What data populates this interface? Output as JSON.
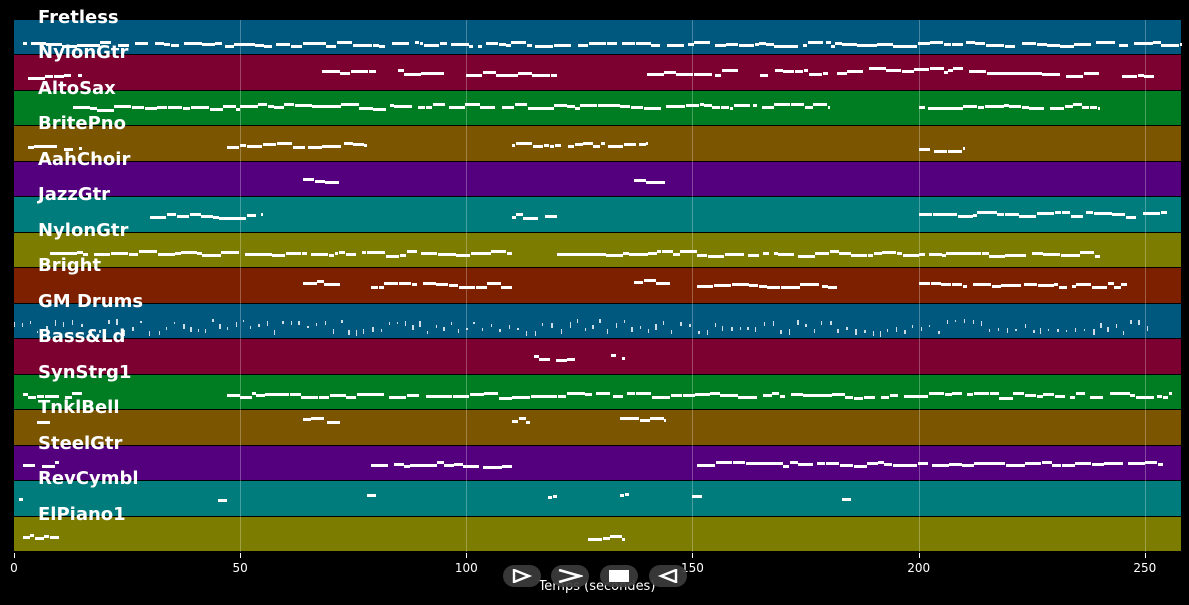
{
  "chart_data": {
    "type": "piano-roll",
    "xlabel": "Temps (secondes)",
    "xlim": [
      0,
      258
    ],
    "xticks": [
      0,
      50,
      100,
      150,
      200,
      250
    ],
    "grid": true,
    "tracks": [
      {
        "name": "Fretless",
        "color": "#00587e",
        "segments": [
          [
            2,
            258,
            0.65
          ]
        ]
      },
      {
        "name": "NylonGtr",
        "color": "#7c0030",
        "segments": [
          [
            3,
            15,
            0.55
          ],
          [
            68,
            80,
            0.45
          ],
          [
            85,
            95,
            0.45
          ],
          [
            100,
            120,
            0.5
          ],
          [
            140,
            160,
            0.45
          ],
          [
            165,
            180,
            0.45
          ],
          [
            182,
            215,
            0.4
          ],
          [
            215,
            240,
            0.5
          ],
          [
            245,
            252,
            0.5
          ]
        ]
      },
      {
        "name": "AltoSax",
        "color": "#007d22",
        "segments": [
          [
            13,
            50,
            0.45
          ],
          [
            50,
            180,
            0.4
          ],
          [
            200,
            220,
            0.45
          ],
          [
            220,
            240,
            0.4
          ]
        ]
      },
      {
        "name": "BritePno",
        "color": "#7c5500",
        "segments": [
          [
            3,
            15,
            0.55
          ],
          [
            47,
            78,
            0.5
          ],
          [
            110,
            140,
            0.5
          ],
          [
            200,
            210,
            0.6
          ]
        ]
      },
      {
        "name": "AahChoir",
        "color": "#54007e",
        "segments": [
          [
            64,
            72,
            0.5
          ],
          [
            137,
            144,
            0.5
          ]
        ]
      },
      {
        "name": "JazzGtr",
        "color": "#007c7c",
        "segments": [
          [
            30,
            55,
            0.5
          ],
          [
            110,
            120,
            0.5
          ],
          [
            200,
            255,
            0.45
          ]
        ]
      },
      {
        "name": "NylonGtr",
        "color": "#7c7c00",
        "segments": [
          [
            8,
            110,
            0.55
          ],
          [
            120,
            240,
            0.55
          ]
        ]
      },
      {
        "name": "Bright",
        "color": "#7d2000",
        "segments": [
          [
            64,
            72,
            0.35
          ],
          [
            79,
            110,
            0.45
          ],
          [
            137,
            145,
            0.35
          ],
          [
            151,
            182,
            0.45
          ],
          [
            200,
            246,
            0.45
          ]
        ]
      },
      {
        "name": "GM Drums",
        "color": "#00587e",
        "segments": [
          [
            0,
            252,
            0.6
          ]
        ]
      },
      {
        "name": "Bass&Ld",
        "color": "#7c0030",
        "segments": [
          [
            115,
            124,
            0.5
          ],
          [
            132,
            135,
            0.45
          ]
        ]
      },
      {
        "name": "SynStrg1",
        "color": "#007d22",
        "segments": [
          [
            2,
            15,
            0.55
          ],
          [
            47,
            256,
            0.55
          ]
        ]
      },
      {
        "name": "TnklBell",
        "color": "#7c5500",
        "segments": [
          [
            5,
            8,
            0.35
          ],
          [
            64,
            72,
            0.25
          ],
          [
            110,
            114,
            0.25
          ],
          [
            134,
            144,
            0.25
          ]
        ]
      },
      {
        "name": "SteelGtr",
        "color": "#54007e",
        "segments": [
          [
            2,
            10,
            0.5
          ],
          [
            79,
            110,
            0.5
          ],
          [
            151,
            254,
            0.5
          ]
        ]
      },
      {
        "name": "RevCymbl",
        "color": "#007c7c",
        "segments": [
          [
            1,
            2,
            0.5
          ],
          [
            45,
            47,
            0.5
          ],
          [
            78,
            80,
            0.4
          ],
          [
            118,
            120,
            0.4
          ],
          [
            134,
            136,
            0.4
          ],
          [
            150,
            152,
            0.4
          ],
          [
            183,
            185,
            0.4
          ]
        ]
      },
      {
        "name": "ElPiano1",
        "color": "#7c7c00",
        "segments": [
          [
            2,
            10,
            0.55
          ],
          [
            127,
            135,
            0.55
          ]
        ]
      }
    ]
  },
  "controls": [
    {
      "name": "play-from-start-button",
      "icon": "play-outline-icon"
    },
    {
      "name": "play-button",
      "icon": "play-chevron-icon"
    },
    {
      "name": "stop-button",
      "icon": "stop-square-icon"
    },
    {
      "name": "rewind-button",
      "icon": "rewind-outline-icon"
    }
  ]
}
